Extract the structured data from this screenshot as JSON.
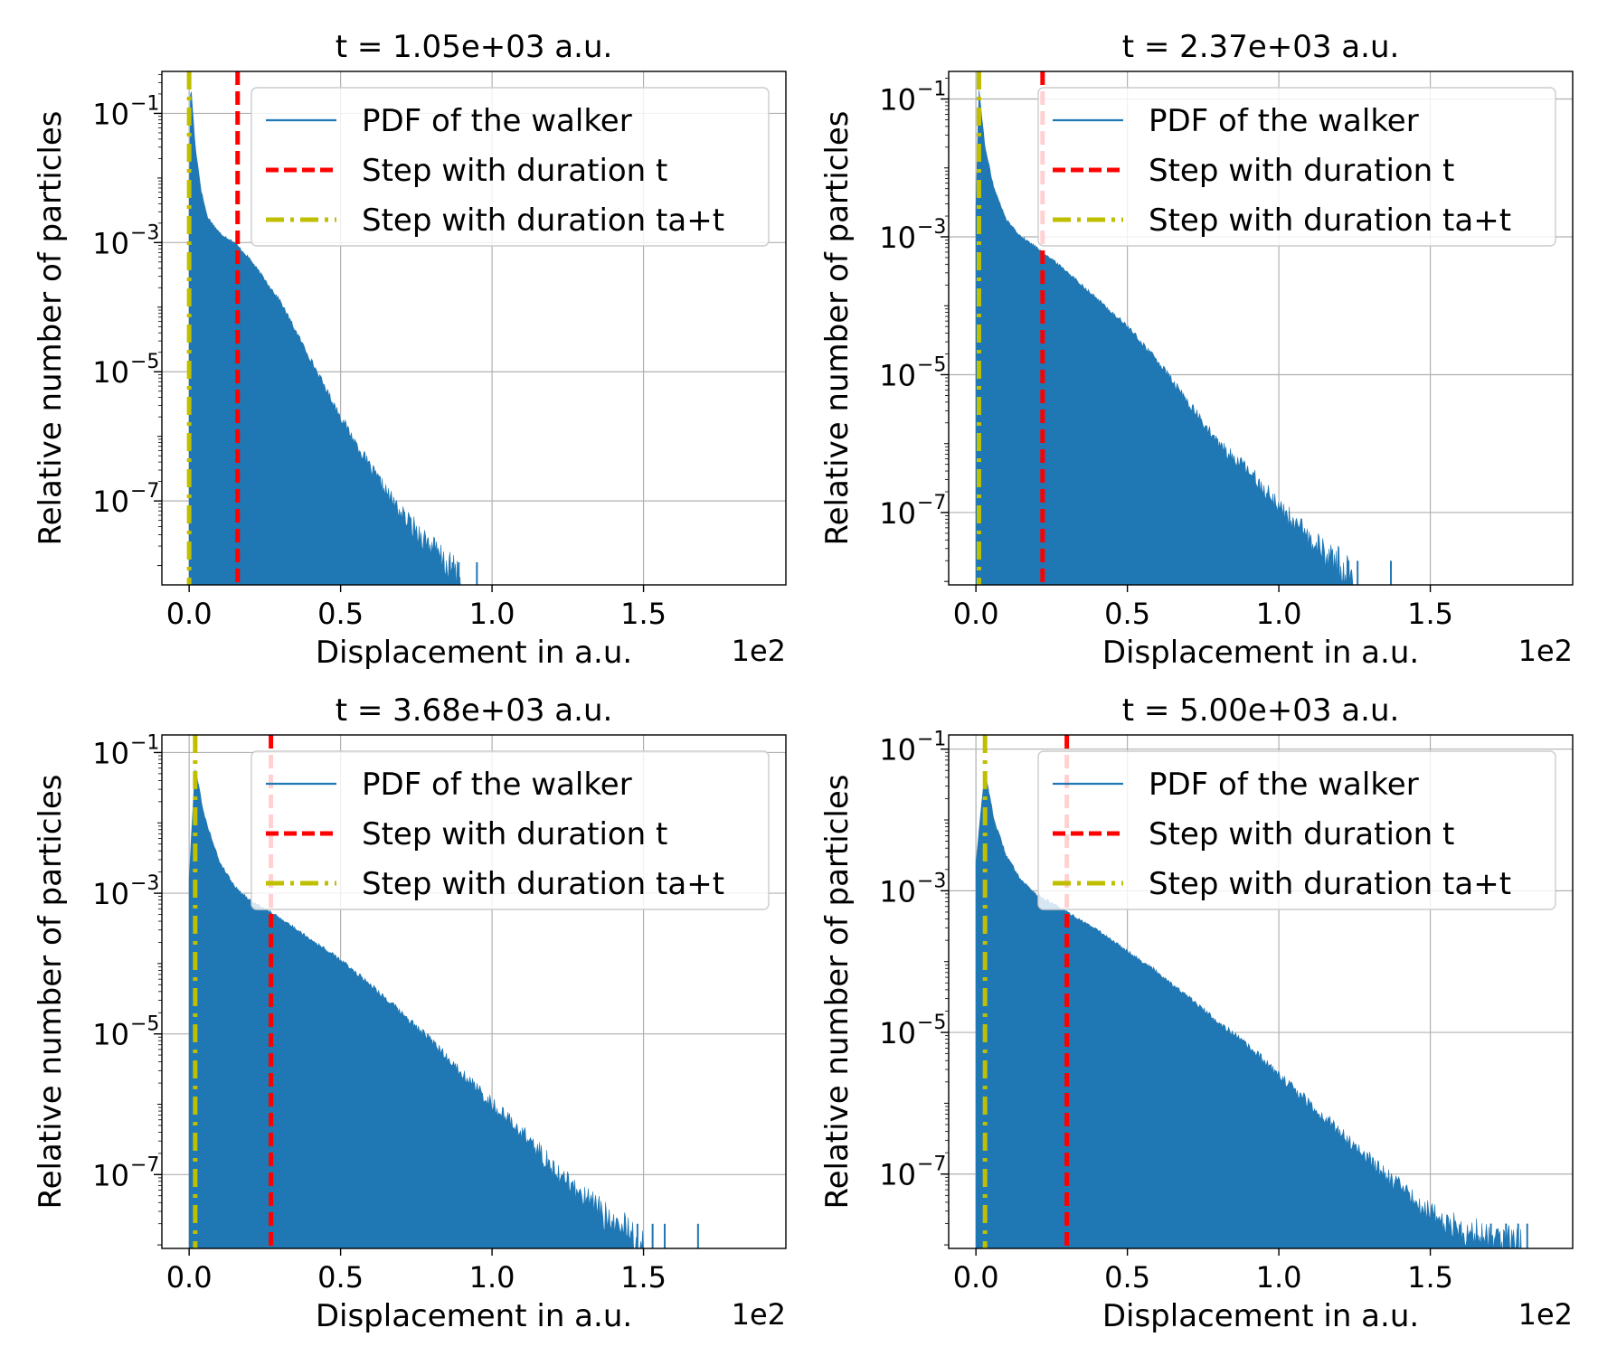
{
  "figure": {
    "xlabel": "Displacement in a.u.",
    "ylabel": "Relative number of particles",
    "x_offset_label": "1e2",
    "legend": [
      "PDF of the walker",
      "Step with duration t",
      "Step with duration ta+t"
    ],
    "colors": {
      "pdf": "#1f77b4",
      "step_t": "#ff0000",
      "step_ta_t": "#bfbf00",
      "grid": "#b0b0b0"
    }
  },
  "chart_data": [
    {
      "type": "area",
      "title": "t = 1.05e+03 a.u.",
      "xlabel": "Displacement in a.u.",
      "ylabel": "Relative number of particles",
      "x_scale_label": "1e2",
      "xlim": [
        -0.09,
        1.97
      ],
      "ylim_log10": [
        -8.3,
        -0.35
      ],
      "y_scale": "log",
      "grid": true,
      "legend_position": "upper right",
      "xticks": [
        {
          "v": 0.0,
          "label": "0.0"
        },
        {
          "v": 0.5,
          "label": "0.5"
        },
        {
          "v": 1.0,
          "label": "1.0"
        },
        {
          "v": 1.5,
          "label": "1.5"
        }
      ],
      "yticks": [
        {
          "e": -1,
          "label": "10"
        },
        {
          "e": -3,
          "label": "10"
        },
        {
          "e": -5,
          "label": "10"
        },
        {
          "e": -7,
          "label": "10"
        }
      ],
      "ytick_exponents": [
        "−1",
        "−3",
        "−5",
        "−7"
      ],
      "series": [
        {
          "name": "PDF of the walker",
          "kind": "histogram",
          "points": [
            [
              0.0,
              -2.6
            ],
            [
              0.005,
              -0.5
            ],
            [
              0.02,
              -1.5
            ],
            [
              0.04,
              -2.2
            ],
            [
              0.06,
              -2.6
            ],
            [
              0.1,
              -2.85
            ],
            [
              0.15,
              -3.0
            ],
            [
              0.2,
              -3.25
            ],
            [
              0.3,
              -3.9
            ],
            [
              0.4,
              -4.8
            ],
            [
              0.5,
              -5.7
            ],
            [
              0.6,
              -6.5
            ],
            [
              0.7,
              -7.2
            ],
            [
              0.8,
              -7.7
            ],
            [
              0.85,
              -8.0
            ],
            [
              0.9,
              -8.2
            ]
          ],
          "tail_x": [
            0.87,
            0.89,
            0.95
          ]
        },
        {
          "name": "Step with duration t",
          "kind": "vline",
          "x": 0.16
        },
        {
          "name": "Step with duration ta+t",
          "kind": "vline",
          "x": 0.0
        }
      ]
    },
    {
      "type": "area",
      "title": "t = 2.37e+03 a.u.",
      "xlabel": "Displacement in a.u.",
      "ylabel": "Relative number of particles",
      "x_scale_label": "1e2",
      "xlim": [
        -0.09,
        1.97
      ],
      "ylim_log10": [
        -8.05,
        -0.6
      ],
      "y_scale": "log",
      "grid": true,
      "legend_position": "upper right",
      "xticks": [
        {
          "v": 0.0,
          "label": "0.0"
        },
        {
          "v": 0.5,
          "label": "0.5"
        },
        {
          "v": 1.0,
          "label": "1.0"
        },
        {
          "v": 1.5,
          "label": "1.5"
        }
      ],
      "yticks": [
        {
          "e": -1,
          "label": "10"
        },
        {
          "e": -3,
          "label": "10"
        },
        {
          "e": -5,
          "label": "10"
        },
        {
          "e": -7,
          "label": "10"
        }
      ],
      "ytick_exponents": [
        "−1",
        "−3",
        "−5",
        "−7"
      ],
      "series": [
        {
          "name": "PDF of the walker",
          "kind": "histogram",
          "points": [
            [
              0.0,
              -2.6
            ],
            [
              0.01,
              -0.85
            ],
            [
              0.03,
              -1.7
            ],
            [
              0.06,
              -2.3
            ],
            [
              0.1,
              -2.75
            ],
            [
              0.15,
              -3.0
            ],
            [
              0.2,
              -3.15
            ],
            [
              0.3,
              -3.5
            ],
            [
              0.4,
              -3.9
            ],
            [
              0.5,
              -4.3
            ],
            [
              0.6,
              -4.8
            ],
            [
              0.7,
              -5.4
            ],
            [
              0.8,
              -6.0
            ],
            [
              0.9,
              -6.4
            ],
            [
              1.0,
              -6.9
            ],
            [
              1.1,
              -7.4
            ],
            [
              1.2,
              -7.75
            ],
            [
              1.25,
              -7.95
            ]
          ],
          "tail_x": [
            1.23,
            1.26,
            1.37
          ]
        },
        {
          "name": "Step with duration t",
          "kind": "vline",
          "x": 0.22
        },
        {
          "name": "Step with duration ta+t",
          "kind": "vline",
          "x": 0.01
        }
      ]
    },
    {
      "type": "area",
      "title": "t = 3.68e+03 a.u.",
      "xlabel": "Displacement in a.u.",
      "ylabel": "Relative number of particles",
      "x_scale_label": "1e2",
      "xlim": [
        -0.09,
        1.97
      ],
      "ylim_log10": [
        -8.05,
        -0.75
      ],
      "y_scale": "log",
      "grid": true,
      "legend_position": "upper right",
      "xticks": [
        {
          "v": 0.0,
          "label": "0.0"
        },
        {
          "v": 0.5,
          "label": "0.5"
        },
        {
          "v": 1.0,
          "label": "1.0"
        },
        {
          "v": 1.5,
          "label": "1.5"
        }
      ],
      "yticks": [
        {
          "e": -1,
          "label": "10"
        },
        {
          "e": -3,
          "label": "10"
        },
        {
          "e": -5,
          "label": "10"
        },
        {
          "e": -7,
          "label": "10"
        }
      ],
      "ytick_exponents": [
        "−1",
        "−3",
        "−5",
        "−7"
      ],
      "series": [
        {
          "name": "PDF of the walker",
          "kind": "histogram",
          "points": [
            [
              0.0,
              -2.8
            ],
            [
              0.02,
              -1.2
            ],
            [
              0.05,
              -1.9
            ],
            [
              0.1,
              -2.55
            ],
            [
              0.15,
              -2.9
            ],
            [
              0.2,
              -3.1
            ],
            [
              0.3,
              -3.35
            ],
            [
              0.4,
              -3.65
            ],
            [
              0.5,
              -3.95
            ],
            [
              0.6,
              -4.3
            ],
            [
              0.7,
              -4.7
            ],
            [
              0.8,
              -5.1
            ],
            [
              0.9,
              -5.55
            ],
            [
              1.0,
              -6.0
            ],
            [
              1.1,
              -6.4
            ],
            [
              1.2,
              -6.9
            ],
            [
              1.3,
              -7.3
            ],
            [
              1.4,
              -7.7
            ],
            [
              1.5,
              -7.95
            ]
          ],
          "tail_x": [
            1.48,
            1.53,
            1.57,
            1.68
          ]
        },
        {
          "name": "Step with duration t",
          "kind": "vline",
          "x": 0.27
        },
        {
          "name": "Step with duration ta+t",
          "kind": "vline",
          "x": 0.02
        }
      ]
    },
    {
      "type": "area",
      "title": "t = 5.00e+03 a.u.",
      "xlabel": "Displacement in a.u.",
      "ylabel": "Relative number of particles",
      "x_scale_label": "1e2",
      "xlim": [
        -0.09,
        1.97
      ],
      "ylim_log10": [
        -8.05,
        -0.8
      ],
      "y_scale": "log",
      "grid": true,
      "legend_position": "upper right",
      "xticks": [
        {
          "v": 0.0,
          "label": "0.0"
        },
        {
          "v": 0.5,
          "label": "0.5"
        },
        {
          "v": 1.0,
          "label": "1.0"
        },
        {
          "v": 1.5,
          "label": "1.5"
        }
      ],
      "yticks": [
        {
          "e": -1,
          "label": "10"
        },
        {
          "e": -3,
          "label": "10"
        },
        {
          "e": -5,
          "label": "10"
        },
        {
          "e": -7,
          "label": "10"
        }
      ],
      "ytick_exponents": [
        "−1",
        "−3",
        "−5",
        "−7"
      ],
      "series": [
        {
          "name": "PDF of the walker",
          "kind": "histogram",
          "points": [
            [
              0.0,
              -2.6
            ],
            [
              0.03,
              -1.3
            ],
            [
              0.06,
              -2.0
            ],
            [
              0.1,
              -2.5
            ],
            [
              0.15,
              -2.85
            ],
            [
              0.2,
              -3.05
            ],
            [
              0.3,
              -3.3
            ],
            [
              0.4,
              -3.55
            ],
            [
              0.5,
              -3.85
            ],
            [
              0.6,
              -4.15
            ],
            [
              0.7,
              -4.5
            ],
            [
              0.8,
              -4.85
            ],
            [
              0.9,
              -5.2
            ],
            [
              1.0,
              -5.6
            ],
            [
              1.1,
              -6.0
            ],
            [
              1.2,
              -6.4
            ],
            [
              1.3,
              -6.8
            ],
            [
              1.4,
              -7.2
            ],
            [
              1.5,
              -7.55
            ],
            [
              1.6,
              -7.8
            ],
            [
              1.8,
              -7.95
            ]
          ],
          "tail_x": [
            1.7,
            1.75,
            1.79,
            1.82
          ]
        },
        {
          "name": "Step with duration t",
          "kind": "vline",
          "x": 0.3
        },
        {
          "name": "Step with duration ta+t",
          "kind": "vline",
          "x": 0.03
        }
      ]
    }
  ]
}
